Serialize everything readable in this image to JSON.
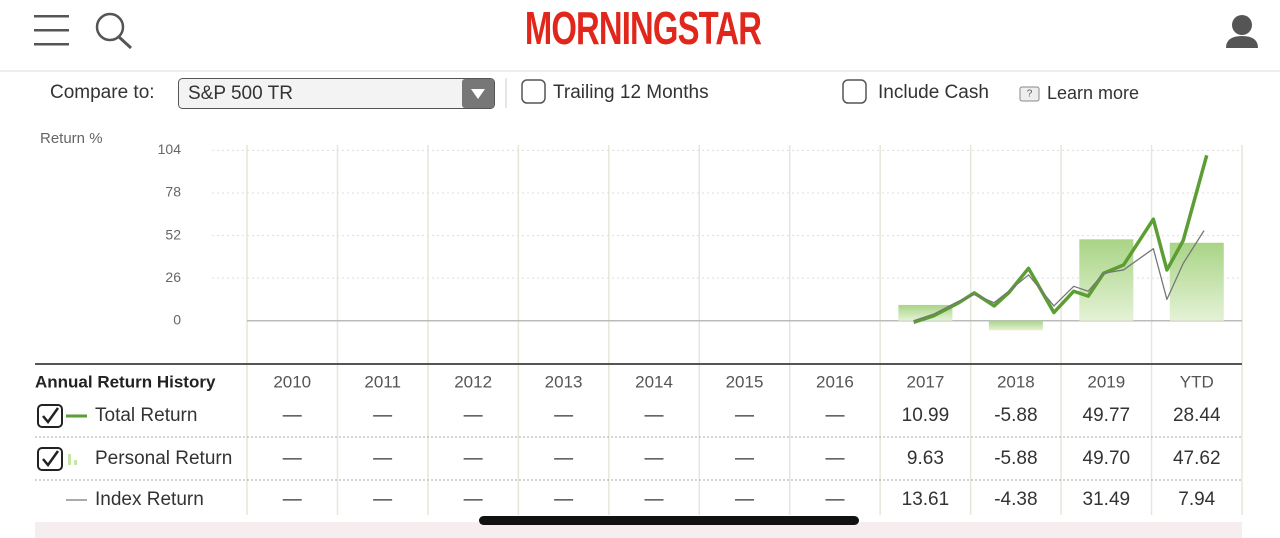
{
  "header": {
    "logo": "MORNINGSTAR"
  },
  "controls": {
    "compare_label": "Compare to:",
    "compare_value": "S&P 500 TR",
    "trailing": "Trailing 12 Months",
    "include_cash": "Include Cash",
    "learn_more": "Learn more"
  },
  "chart_data": {
    "type": "bar",
    "y_label": "Return %",
    "categories": [
      "2010",
      "2011",
      "2012",
      "2013",
      "2014",
      "2015",
      "2016",
      "2017",
      "2018",
      "2019",
      "YTD"
    ],
    "ylim": [
      -24,
      110
    ],
    "yticks": [
      0,
      26,
      52,
      78,
      104
    ],
    "xlim": [
      2010,
      2021
    ],
    "grid": true,
    "series": [
      {
        "name": "Total Return",
        "kind": "line",
        "color": "#5c9e33",
        "x": [
          2017.37,
          2017.59,
          2017.87,
          2018.04,
          2018.26,
          2018.42,
          2018.64,
          2018.92,
          2019.14,
          2019.3,
          2019.47,
          2019.69,
          2020.02,
          2020.17,
          2020.35,
          2020.61
        ],
        "values": [
          -1,
          3,
          11,
          17,
          9,
          17,
          32,
          5,
          18,
          15,
          29,
          34,
          62,
          31,
          49,
          101
        ]
      },
      {
        "name": "Personal Return",
        "kind": "bar",
        "color": "#c6e4a6",
        "values": [
          null,
          null,
          null,
          null,
          null,
          null,
          null,
          9.63,
          -5.88,
          49.7,
          47.62
        ]
      },
      {
        "name": "Index Return",
        "kind": "line",
        "color": "#777777",
        "x": [
          2017.37,
          2017.59,
          2017.87,
          2018.04,
          2018.26,
          2018.42,
          2018.64,
          2018.92,
          2019.14,
          2019.3,
          2019.47,
          2019.69,
          2020.02,
          2020.17,
          2020.35,
          2020.58
        ],
        "values": [
          0,
          4,
          12,
          16,
          11,
          18,
          28,
          9,
          21,
          18,
          29,
          31,
          44,
          13,
          35,
          55
        ]
      }
    ]
  },
  "table": {
    "title": "Annual Return History",
    "rows": [
      [
        "—",
        "—",
        "—",
        "—",
        "—",
        "—",
        "—",
        "10.99",
        "-5.88",
        "49.77",
        "28.44"
      ],
      [
        "—",
        "—",
        "—",
        "—",
        "—",
        "—",
        "—",
        "9.63",
        "-5.88",
        "49.70",
        "47.62"
      ],
      [
        "—",
        "—",
        "—",
        "—",
        "—",
        "—",
        "—",
        "13.61",
        "-4.38",
        "31.49",
        "7.94"
      ]
    ]
  }
}
